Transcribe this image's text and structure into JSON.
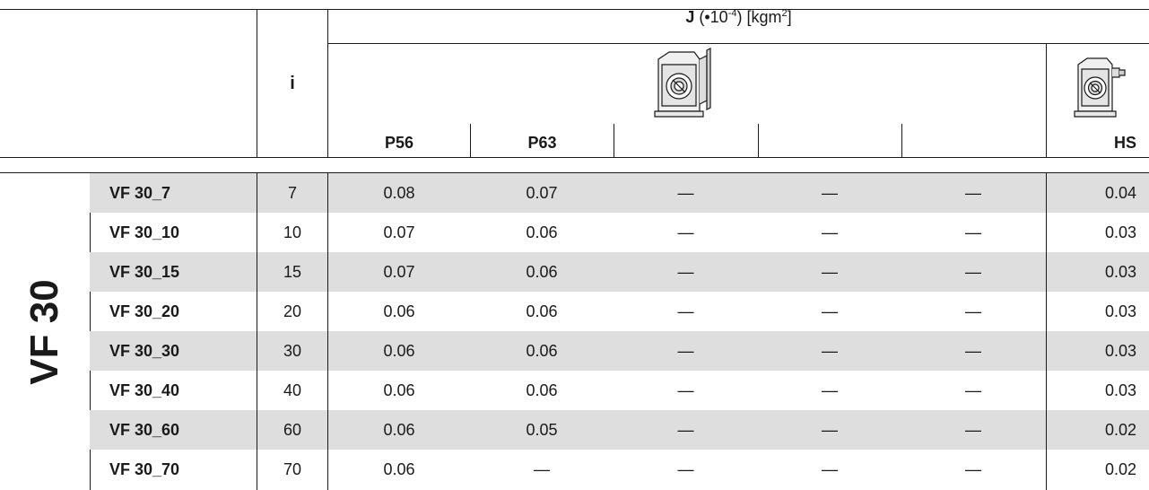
{
  "header": {
    "j_symbol": "J",
    "j_unit_pre": " (•10",
    "j_exp": "-4",
    "j_unit_post": ") [kgm",
    "j_sq": "2",
    "j_close": "]",
    "i_label": "i",
    "columns": [
      "P56",
      "P63",
      "",
      "",
      "",
      "HS"
    ],
    "icons": [
      "gearbox-motor-adapter-icon",
      "gearbox-hs-input-icon"
    ]
  },
  "group_label": "VF 30",
  "rows": [
    {
      "model": "VF 30_7",
      "i": "7",
      "p56": "0.08",
      "p63": "0.07",
      "e1": "—",
      "e2": "—",
      "e3": "—",
      "hs": "0.04"
    },
    {
      "model": "VF 30_10",
      "i": "10",
      "p56": "0.07",
      "p63": "0.06",
      "e1": "—",
      "e2": "—",
      "e3": "—",
      "hs": "0.03"
    },
    {
      "model": "VF 30_15",
      "i": "15",
      "p56": "0.07",
      "p63": "0.06",
      "e1": "—",
      "e2": "—",
      "e3": "—",
      "hs": "0.03"
    },
    {
      "model": "VF 30_20",
      "i": "20",
      "p56": "0.06",
      "p63": "0.06",
      "e1": "—",
      "e2": "—",
      "e3": "—",
      "hs": "0.03"
    },
    {
      "model": "VF 30_30",
      "i": "30",
      "p56": "0.06",
      "p63": "0.06",
      "e1": "—",
      "e2": "—",
      "e3": "—",
      "hs": "0.03"
    },
    {
      "model": "VF 30_40",
      "i": "40",
      "p56": "0.06",
      "p63": "0.06",
      "e1": "—",
      "e2": "—",
      "e3": "—",
      "hs": "0.03"
    },
    {
      "model": "VF 30_60",
      "i": "60",
      "p56": "0.06",
      "p63": "0.05",
      "e1": "—",
      "e2": "—",
      "e3": "—",
      "hs": "0.02"
    },
    {
      "model": "VF 30_70",
      "i": "70",
      "p56": "0.06",
      "p63": "—",
      "e1": "—",
      "e2": "—",
      "e3": "—",
      "hs": "0.02"
    }
  ]
}
